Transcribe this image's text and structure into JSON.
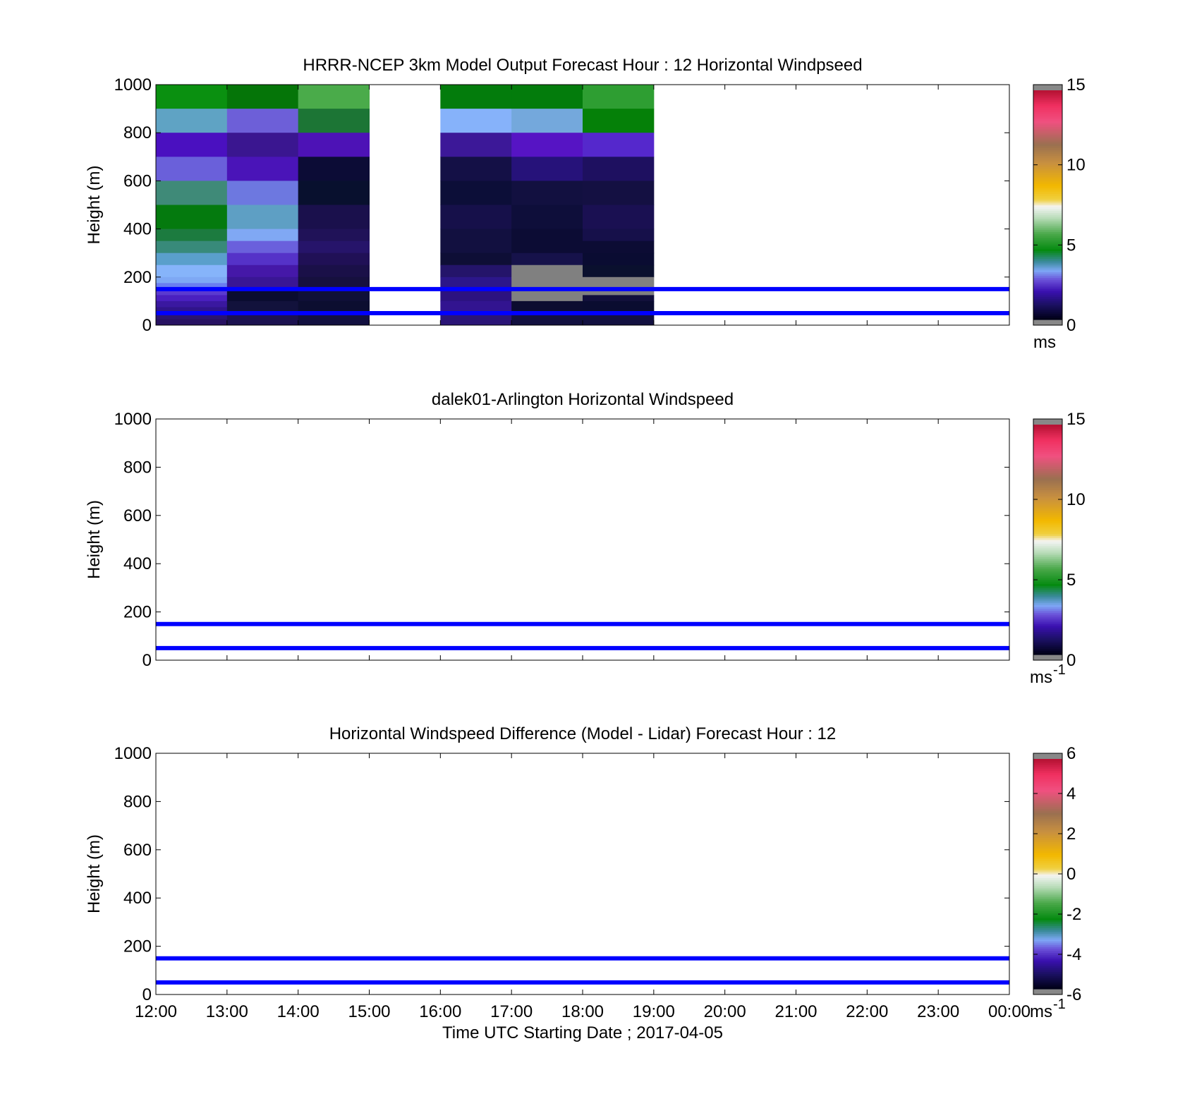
{
  "figure": {
    "xtick_labels": [
      "12:00",
      "13:00",
      "14:00",
      "15:00",
      "16:00",
      "17:00",
      "18:00",
      "19:00",
      "20:00",
      "21:00",
      "22:00",
      "23:00",
      "00:00"
    ],
    "xlabel": "Time UTC  Starting Date ; 2017-04-05",
    "ytick_labels": [
      "0",
      "200",
      "400",
      "600",
      "800",
      "1000"
    ],
    "ylabel": "Height (m)"
  },
  "chart_data": [
    {
      "type": "heatmap",
      "title": "HRRR-NCEP 3km Model Output   Forecast Hour : 12 Horizontal Windpseed",
      "ylabel": "Height (m)",
      "ylim": [
        0,
        1000
      ],
      "x_hours": [
        12,
        13,
        14,
        15,
        16,
        17,
        18,
        19,
        20,
        21,
        22,
        23,
        24
      ],
      "colorbar": {
        "ticks": [
          "0",
          "5",
          "10",
          "15"
        ],
        "range": [
          0,
          15
        ],
        "unit": "ms"
      },
      "reference_lines_m": [
        50,
        150
      ],
      "cells": [
        {
          "hour": 12,
          "rows": [
            [
              900,
              1000,
              "#0a9010"
            ],
            [
              800,
              900,
              "#5fa3c4"
            ],
            [
              700,
              800,
              "#4a10c0"
            ],
            [
              600,
              700,
              "#6a60da"
            ],
            [
              500,
              600,
              "#3f8a78"
            ],
            [
              400,
              500,
              "#047a0e"
            ],
            [
              350,
              400,
              "#1c7b3f"
            ],
            [
              300,
              350,
              "#388a7a"
            ],
            [
              250,
              300,
              "#5a9fcb"
            ],
            [
              200,
              250,
              "#86b4fa"
            ],
            [
              175,
              200,
              "#7ea8f4"
            ],
            [
              150,
              175,
              "#6a7ef0"
            ],
            [
              125,
              150,
              "#5a3ad0"
            ],
            [
              100,
              125,
              "#4a20c0"
            ],
            [
              75,
              100,
              "#3a18a0"
            ],
            [
              50,
              75,
              "#30148a"
            ],
            [
              25,
              50,
              "#2a1470"
            ],
            [
              0,
              25,
              "#281262"
            ]
          ]
        },
        {
          "hour": 13,
          "rows": [
            [
              900,
              1000,
              "#057508"
            ],
            [
              800,
              900,
              "#6d5fd8"
            ],
            [
              700,
              800,
              "#3a1690"
            ],
            [
              600,
              700,
              "#4a14b8"
            ],
            [
              500,
              600,
              "#6d78e0"
            ],
            [
              400,
              500,
              "#5e9fc4"
            ],
            [
              350,
              400,
              "#80a8f4"
            ],
            [
              300,
              350,
              "#6a60dc"
            ],
            [
              250,
              300,
              "#5532c8"
            ],
            [
              200,
              250,
              "#4518a8"
            ],
            [
              150,
              200,
              "#3a1694"
            ],
            [
              100,
              150,
              "#0a0c30"
            ],
            [
              50,
              100,
              "#12123c"
            ],
            [
              0,
              50,
              "#1c1250"
            ]
          ]
        },
        {
          "hour": 14,
          "rows": [
            [
              900,
              1000,
              "#4aab4a"
            ],
            [
              800,
              900,
              "#1c7535"
            ],
            [
              700,
              800,
              "#4d12b6"
            ],
            [
              600,
              700,
              "#0c0c36"
            ],
            [
              500,
              600,
              "#08102e"
            ],
            [
              400,
              500,
              "#1a104c"
            ],
            [
              350,
              400,
              "#201258"
            ],
            [
              300,
              350,
              "#26146a"
            ],
            [
              250,
              300,
              "#201056"
            ],
            [
              200,
              250,
              "#1a1048"
            ],
            [
              150,
              200,
              "#16103e"
            ],
            [
              100,
              150,
              "#0f1038"
            ],
            [
              50,
              100,
              "#0c0e30"
            ],
            [
              0,
              50,
              "#121040"
            ]
          ]
        },
        {
          "hour": 16,
          "rows": [
            [
              900,
              1000,
              "#037c0c"
            ],
            [
              800,
              900,
              "#86b2fa"
            ],
            [
              700,
              800,
              "#3c1898"
            ],
            [
              600,
              700,
              "#141046"
            ],
            [
              500,
              600,
              "#0c0e38"
            ],
            [
              400,
              500,
              "#16104a"
            ],
            [
              300,
              400,
              "#121040"
            ],
            [
              250,
              300,
              "#0e0e36"
            ],
            [
              200,
              250,
              "#24146a"
            ],
            [
              150,
              200,
              "#2c168a"
            ],
            [
              100,
              150,
              "#2c1280"
            ],
            [
              50,
              100,
              "#321490"
            ],
            [
              0,
              50,
              "#2a1476"
            ]
          ]
        },
        {
          "hour": 17,
          "rows": [
            [
              900,
              1000,
              "#037c0c"
            ],
            [
              800,
              900,
              "#74a8dc"
            ],
            [
              700,
              800,
              "#5614c4"
            ],
            [
              600,
              700,
              "#26127a"
            ],
            [
              500,
              600,
              "#121040"
            ],
            [
              400,
              500,
              "#0e0e3a"
            ],
            [
              300,
              400,
              "#0c0c34"
            ],
            [
              250,
              300,
              "#16124a"
            ],
            [
              200,
              250,
              "#808080"
            ],
            [
              150,
              200,
              "#808080"
            ],
            [
              100,
              150,
              "#808080"
            ],
            [
              50,
              100,
              "#0c0c30"
            ],
            [
              0,
              50,
              "#121040"
            ]
          ]
        },
        {
          "hour": 18,
          "rows": [
            [
              900,
              1000,
              "#2e9e32"
            ],
            [
              800,
              900,
              "#058008"
            ],
            [
              700,
              800,
              "#5528cc"
            ],
            [
              600,
              700,
              "#1e1060"
            ],
            [
              500,
              600,
              "#141042"
            ],
            [
              400,
              500,
              "#1a1052"
            ],
            [
              350,
              400,
              "#16104a"
            ],
            [
              300,
              350,
              "#0c0c34"
            ],
            [
              250,
              300,
              "#0a0c32"
            ],
            [
              200,
              250,
              "#0a102e"
            ],
            [
              175,
              200,
              "#808080"
            ],
            [
              150,
              175,
              "#808080"
            ],
            [
              125,
              150,
              "#808080"
            ],
            [
              100,
              125,
              "#12103c"
            ],
            [
              50,
              100,
              "#0a0c30"
            ],
            [
              0,
              50,
              "#121040"
            ]
          ]
        }
      ]
    },
    {
      "type": "heatmap",
      "title": "dalek01-Arlington  Horizontal Windspeed",
      "ylabel": "Height (m)",
      "ylim": [
        0,
        1000
      ],
      "colorbar": {
        "ticks": [
          "0",
          "5",
          "10",
          "15"
        ],
        "range": [
          0,
          15
        ],
        "unit": "ms",
        "unit_sup": "-1"
      },
      "reference_lines_m": [
        50,
        150
      ],
      "cells": []
    },
    {
      "type": "heatmap",
      "title": "Horizontal Windspeed Difference (Model - Lidar) Forecast Hour : 12",
      "ylabel": "Height (m)",
      "xlabel": "Time UTC  Starting Date ; 2017-04-05",
      "ylim": [
        0,
        1000
      ],
      "colorbar": {
        "ticks": [
          "-6",
          "-4",
          "-2",
          "0",
          "2",
          "4",
          "6"
        ],
        "range": [
          -6,
          6
        ],
        "unit": "ms",
        "unit_sup": "-1"
      },
      "reference_lines_m": [
        50,
        150
      ],
      "cells": []
    }
  ]
}
